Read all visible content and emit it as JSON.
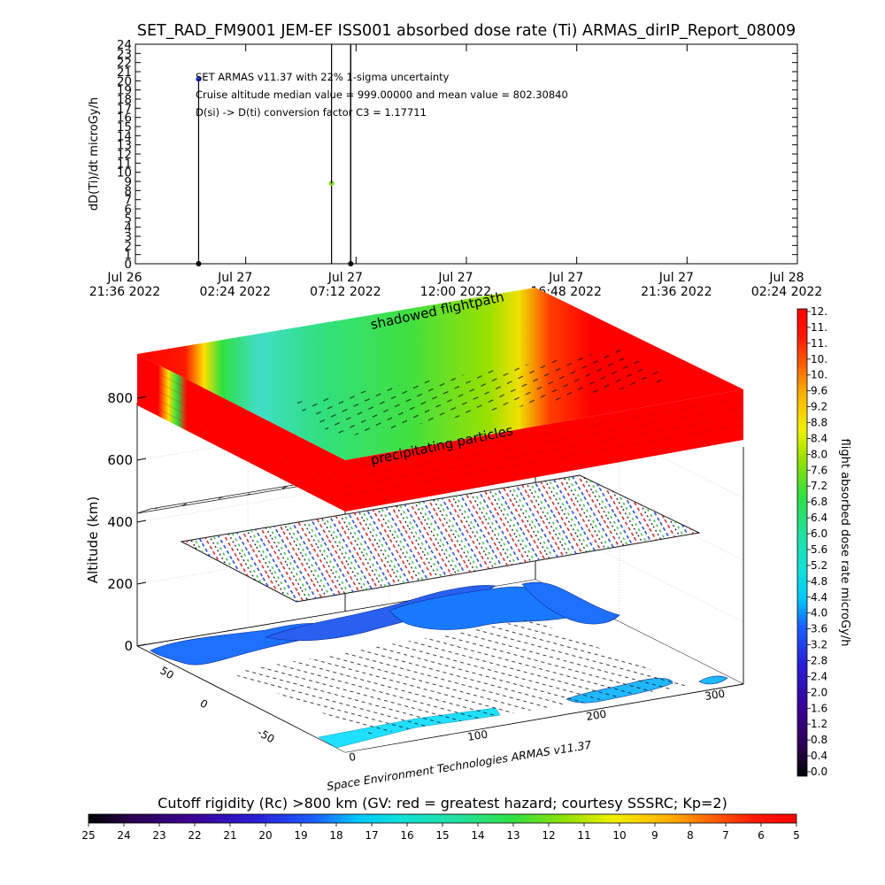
{
  "chart_data": [
    {
      "type": "scatter",
      "title": "SET_RAD_FM9001  JEM-EF ISS001 absorbed dose rate (Ti) ARMAS_dirIP_Report_08009",
      "ylabel": "dD(Ti)/dt microGy/h",
      "ylim": [
        0,
        24
      ],
      "y_ticks": [
        "0",
        "1",
        "2",
        "3",
        "4",
        "5",
        "6",
        "7",
        "8",
        "9",
        "10",
        "11",
        "12",
        "13",
        "14",
        "15",
        "16",
        "17",
        "18",
        "19",
        "20",
        "21",
        "22",
        "23",
        "24"
      ],
      "x_ticks": [
        {
          "line1": "Jul 26",
          "line2": "21:36 2022"
        },
        {
          "line1": "Jul 27",
          "line2": "02:24 2022"
        },
        {
          "line1": "Jul 27",
          "line2": "07:12 2022"
        },
        {
          "line1": "Jul 27",
          "line2": "12:00 2022"
        },
        {
          "line1": "Jul 27",
          "line2": "16:48 2022"
        },
        {
          "line1": "Jul 27",
          "line2": "21:36 2022"
        },
        {
          "line1": "Jul 28",
          "line2": "02:24 2022"
        }
      ],
      "xrange": [
        "2022-07-26 21:36",
        "2022-07-28 02:24"
      ],
      "grid": false,
      "points": [
        {
          "x": "2022-07-27 00:21",
          "y": 20.2,
          "color": "#1a3ad8"
        },
        {
          "x": "2022-07-27 00:21",
          "y": 0.0,
          "color": "#000000"
        },
        {
          "x": "2022-07-27 06:08",
          "y": 8.8,
          "color": "#7ad818"
        },
        {
          "x": "2022-07-27 06:58",
          "y": 0.0,
          "color": "#000000"
        }
      ],
      "annotations": [
        "SET ARMAS v11.37 with 22% 1-sigma uncertainty",
        "Cruise altitude median value = 999.00000 and mean value = 802.30840",
        "D(si) -> D(ti) conversion factor C3 = 1.17711"
      ]
    },
    {
      "type": "heatmap",
      "title": "",
      "zlabel": "Altitude (km)",
      "z_ticks": [
        "0",
        "200",
        "400",
        "600",
        "800"
      ],
      "x_ticks": [
        "0",
        "100",
        "200",
        "300"
      ],
      "y_ticks": [
        "-50",
        "0",
        "50"
      ],
      "layers": [
        "shadowed flightpath",
        "precipitating particles"
      ],
      "credit": "Space Environment Technologies ARMAS v11.37"
    },
    {
      "type": "colorbar",
      "label": "flight absorbed dose rate microGy/h",
      "ticks": [
        "0.0",
        "0.4",
        "0.8",
        "1.2",
        "1.6",
        "2.0",
        "2.4",
        "2.8",
        "3.2",
        "3.6",
        "4.0",
        "4.4",
        "4.8",
        "5.2",
        "5.6",
        "6.0",
        "6.4",
        "6.8",
        "7.2",
        "7.6",
        "8.0",
        "8.4",
        "8.8",
        "9.2",
        "9.6",
        "10.",
        "10.",
        "11.",
        "11.",
        "12."
      ],
      "colors": [
        "#000000",
        "#2a0050",
        "#3b0090",
        "#2a20d8",
        "#1a60ff",
        "#00c8ff",
        "#10e0d8",
        "#20e0a0",
        "#30e040",
        "#9ae000",
        "#f0f000",
        "#ffb000",
        "#ff6000",
        "#ff1a00",
        "#ff0000"
      ]
    },
    {
      "type": "colorbar",
      "label": "Cutoff rigidity (Rc) >800 km (GV: red = greatest hazard; courtesy SSSRC; Kp=2)",
      "ticks": [
        "25",
        "24",
        "23",
        "22",
        "21",
        "20",
        "19",
        "18",
        "17",
        "16",
        "15",
        "14",
        "13",
        "12",
        "11",
        "10",
        "9",
        "8",
        "7",
        "6",
        "5"
      ],
      "colors": [
        "#000000",
        "#2a0050",
        "#3b0090",
        "#2a20d8",
        "#1a60ff",
        "#00c8ff",
        "#10e0d8",
        "#20e0a0",
        "#30e040",
        "#9ae000",
        "#f0f000",
        "#ffb000",
        "#ff6000",
        "#ff1a00",
        "#ff0000"
      ]
    }
  ]
}
